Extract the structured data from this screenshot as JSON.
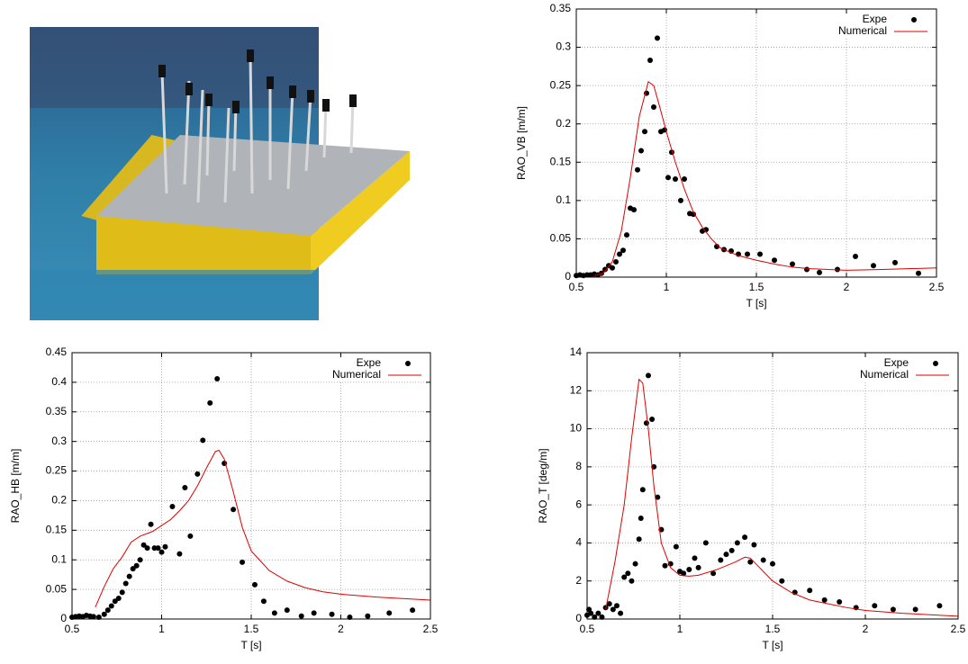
{
  "chart_data": [
    {
      "type": "line",
      "xlabel": "T [s]",
      "ylabel": "RAO_VB [m/m]",
      "xlim": [
        0.5,
        2.5
      ],
      "xticks": [
        0.5,
        1,
        1.5,
        2,
        2.5
      ],
      "ylim": [
        0,
        0.35
      ],
      "yticks": [
        0,
        0.05,
        0.1,
        0.15,
        0.2,
        0.25,
        0.3,
        0.35
      ],
      "grid": true,
      "legend": "upper-right",
      "series": [
        {
          "name": "Expe",
          "mode": "points",
          "color": "#000000",
          "x": [
            0.5,
            0.52,
            0.54,
            0.56,
            0.58,
            0.6,
            0.62,
            0.64,
            0.66,
            0.68,
            0.7,
            0.72,
            0.74,
            0.76,
            0.78,
            0.8,
            0.82,
            0.84,
            0.86,
            0.88,
            0.89,
            0.91,
            0.93,
            0.95,
            0.97,
            0.99,
            1.01,
            1.03,
            1.05,
            1.08,
            1.1,
            1.13,
            1.15,
            1.2,
            1.22,
            1.28,
            1.32,
            1.36,
            1.4,
            1.45,
            1.52,
            1.6,
            1.7,
            1.78,
            1.85,
            1.95,
            2.05,
            2.15,
            2.27,
            2.4
          ],
          "values": [
            0.002,
            0.003,
            0.002,
            0.003,
            0.003,
            0.004,
            0.003,
            0.005,
            0.01,
            0.015,
            0.012,
            0.02,
            0.03,
            0.035,
            0.055,
            0.09,
            0.088,
            0.14,
            0.165,
            0.19,
            0.24,
            0.283,
            0.222,
            0.312,
            0.19,
            0.192,
            0.13,
            0.163,
            0.128,
            0.1,
            0.128,
            0.083,
            0.082,
            0.06,
            0.062,
            0.04,
            0.036,
            0.034,
            0.03,
            0.03,
            0.03,
            0.022,
            0.017,
            0.01,
            0.006,
            0.01,
            0.027,
            0.015,
            0.019,
            0.005
          ]
        },
        {
          "name": "Numerical",
          "mode": "line",
          "color": "#e00000",
          "x": [
            0.6,
            0.65,
            0.7,
            0.75,
            0.8,
            0.85,
            0.9,
            0.93,
            0.96,
            1.0,
            1.05,
            1.1,
            1.15,
            1.2,
            1.25,
            1.3,
            1.4,
            1.5,
            1.6,
            1.7,
            1.8,
            1.9,
            2.0,
            2.2,
            2.5
          ],
          "values": [
            0.002,
            0.005,
            0.02,
            0.06,
            0.13,
            0.21,
            0.255,
            0.25,
            0.225,
            0.19,
            0.15,
            0.115,
            0.085,
            0.065,
            0.05,
            0.038,
            0.028,
            0.022,
            0.017,
            0.013,
            0.011,
            0.01,
            0.009,
            0.01,
            0.012
          ]
        }
      ]
    },
    {
      "type": "line",
      "xlabel": "T [s]",
      "ylabel": "RAO_HB [m/m]",
      "xlim": [
        0.5,
        2.5
      ],
      "xticks": [
        0.5,
        1,
        1.5,
        2,
        2.5
      ],
      "ylim": [
        0,
        0.45
      ],
      "yticks": [
        0,
        0.05,
        0.1,
        0.15,
        0.2,
        0.25,
        0.3,
        0.35,
        0.4,
        0.45
      ],
      "grid": true,
      "legend": "upper-right",
      "series": [
        {
          "name": "Expe",
          "mode": "points",
          "color": "#000000",
          "x": [
            0.5,
            0.52,
            0.54,
            0.56,
            0.58,
            0.6,
            0.62,
            0.65,
            0.68,
            0.7,
            0.72,
            0.74,
            0.76,
            0.78,
            0.8,
            0.82,
            0.84,
            0.86,
            0.88,
            0.9,
            0.92,
            0.94,
            0.96,
            0.98,
            1.0,
            1.02,
            1.06,
            1.1,
            1.13,
            1.16,
            1.2,
            1.23,
            1.27,
            1.31,
            1.35,
            1.4,
            1.45,
            1.52,
            1.57,
            1.63,
            1.7,
            1.78,
            1.85,
            1.95,
            2.05,
            2.15,
            2.27,
            2.4
          ],
          "values": [
            0.003,
            0.004,
            0.005,
            0.004,
            0.006,
            0.005,
            0.004,
            0.003,
            0.008,
            0.015,
            0.022,
            0.03,
            0.035,
            0.045,
            0.06,
            0.072,
            0.085,
            0.09,
            0.1,
            0.125,
            0.12,
            0.16,
            0.12,
            0.12,
            0.113,
            0.122,
            0.19,
            0.11,
            0.222,
            0.14,
            0.245,
            0.302,
            0.365,
            0.406,
            0.263,
            0.185,
            0.096,
            0.058,
            0.03,
            0.01,
            0.015,
            0.005,
            0.01,
            0.008,
            0.003,
            0.005,
            0.01,
            0.015
          ]
        },
        {
          "name": "Numerical",
          "mode": "line",
          "color": "#e00000",
          "x": [
            0.63,
            0.68,
            0.73,
            0.78,
            0.83,
            0.88,
            0.95,
            1.0,
            1.05,
            1.1,
            1.15,
            1.2,
            1.25,
            1.3,
            1.32,
            1.35,
            1.4,
            1.45,
            1.5,
            1.6,
            1.7,
            1.8,
            1.9,
            2.0,
            2.2,
            2.5
          ],
          "values": [
            0.02,
            0.055,
            0.085,
            0.105,
            0.13,
            0.14,
            0.148,
            0.158,
            0.168,
            0.183,
            0.2,
            0.225,
            0.255,
            0.283,
            0.285,
            0.27,
            0.215,
            0.155,
            0.115,
            0.082,
            0.064,
            0.053,
            0.046,
            0.042,
            0.037,
            0.032
          ]
        }
      ]
    },
    {
      "type": "line",
      "xlabel": "T [s]",
      "ylabel": "RAO_T [deg/m]",
      "xlim": [
        0.5,
        2.5
      ],
      "xticks": [
        0.5,
        1,
        1.5,
        2,
        2.5
      ],
      "ylim": [
        0,
        14
      ],
      "yticks": [
        0,
        2,
        4,
        6,
        8,
        10,
        12,
        14
      ],
      "grid": true,
      "legend": "upper-right",
      "series": [
        {
          "name": "Expe",
          "mode": "points",
          "color": "#000000",
          "x": [
            0.5,
            0.51,
            0.52,
            0.54,
            0.56,
            0.58,
            0.6,
            0.62,
            0.64,
            0.66,
            0.68,
            0.7,
            0.72,
            0.74,
            0.76,
            0.78,
            0.79,
            0.8,
            0.82,
            0.83,
            0.85,
            0.86,
            0.88,
            0.9,
            0.92,
            0.95,
            0.98,
            1.0,
            1.02,
            1.05,
            1.08,
            1.1,
            1.14,
            1.18,
            1.22,
            1.25,
            1.28,
            1.31,
            1.35,
            1.38,
            1.4,
            1.45,
            1.5,
            1.55,
            1.62,
            1.7,
            1.78,
            1.86,
            1.95,
            2.05,
            2.15,
            2.27,
            2.4
          ],
          "values": [
            0.2,
            0.5,
            0.3,
            0.1,
            0.3,
            0.1,
            0.6,
            0.8,
            0.5,
            0.7,
            0.3,
            2.2,
            2.4,
            2.0,
            2.9,
            4.2,
            5.3,
            6.8,
            10.3,
            12.8,
            10.5,
            8.0,
            6.4,
            4.7,
            2.8,
            2.9,
            3.8,
            2.5,
            2.4,
            2.6,
            3.2,
            2.7,
            4.0,
            2.4,
            3.1,
            3.4,
            3.6,
            4.0,
            4.3,
            3.0,
            3.9,
            3.1,
            2.9,
            2.0,
            1.4,
            1.5,
            1.0,
            0.9,
            0.6,
            0.7,
            0.5,
            0.5,
            0.7
          ]
        },
        {
          "name": "Numerical",
          "mode": "line",
          "color": "#e00000",
          "x": [
            0.6,
            0.65,
            0.7,
            0.74,
            0.78,
            0.8,
            0.83,
            0.86,
            0.9,
            0.95,
            1.0,
            1.05,
            1.1,
            1.2,
            1.3,
            1.35,
            1.38,
            1.42,
            1.5,
            1.6,
            1.7,
            1.8,
            1.9,
            2.0,
            2.2,
            2.5
          ],
          "values": [
            0.5,
            3.0,
            6.0,
            9.5,
            12.6,
            12.4,
            10.0,
            7.0,
            4.0,
            2.7,
            2.3,
            2.25,
            2.3,
            2.6,
            3.0,
            3.25,
            3.2,
            2.8,
            2.0,
            1.4,
            1.0,
            0.8,
            0.6,
            0.45,
            0.3,
            0.15
          ]
        }
      ]
    }
  ]
}
